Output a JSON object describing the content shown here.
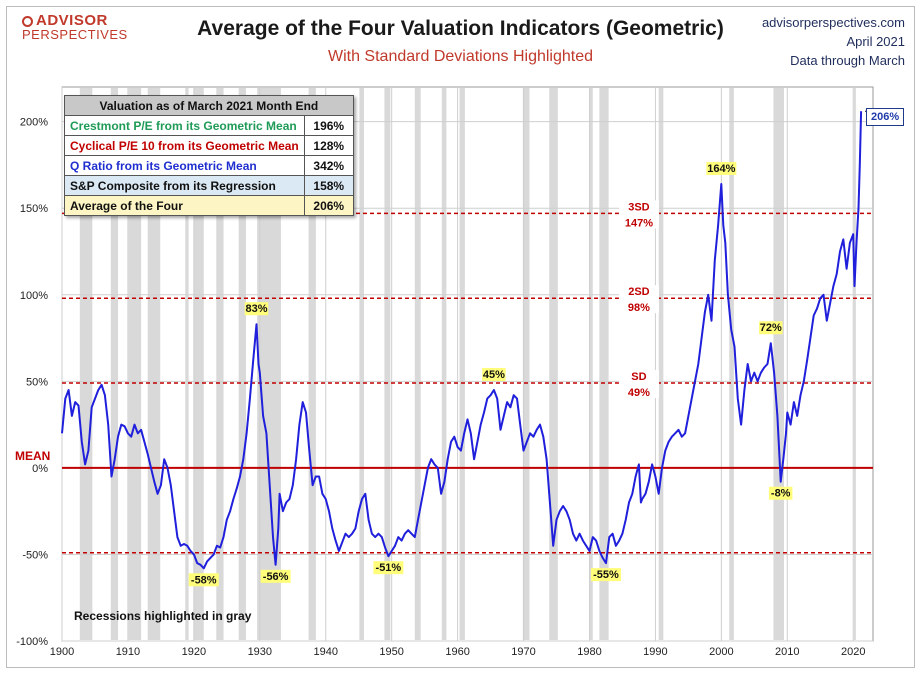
{
  "header": {
    "logo_line1": "ADVISOR",
    "logo_line2": "PERSPECTIVES",
    "title": "Average of the Four Valuation Indicators (Geometric)",
    "subtitle": "With Standard Deviations Highlighted",
    "site": "advisorperspectives.com",
    "date": "April 2021",
    "data_note": "Data through March"
  },
  "table": {
    "header": "Valuation as of March 2021 Month End",
    "rows": [
      {
        "label": "Crestmont P/E from its Geometric Mean",
        "value": "196%",
        "color": "#1f9b57",
        "bg": "#ffffff"
      },
      {
        "label": "Cyclical P/E 10 from its Geometric Mean",
        "value": "128%",
        "color": "#c00000",
        "bg": "#ffffff"
      },
      {
        "label": "Q Ratio from its Geometric Mean",
        "value": "342%",
        "color": "#1f2fcf",
        "bg": "#ffffff"
      },
      {
        "label": "S&P Composite from its Regression",
        "value": "158%",
        "color": "#111111",
        "bg": "#dbe9f5"
      },
      {
        "label": "Average of the Four",
        "value": "206%",
        "color": "#111111",
        "bg": "#fdf6c4"
      }
    ]
  },
  "recession_note": "Recessions highlighted in gray",
  "latest_badge": "206%",
  "mean_label": "MEAN",
  "chart_data": {
    "type": "line",
    "xlim": [
      1900,
      2023
    ],
    "ylim": [
      -100,
      220
    ],
    "x_ticks": [
      "1900",
      "1910",
      "1920",
      "1930",
      "1940",
      "1950",
      "1960",
      "1970",
      "1980",
      "1990",
      "2000",
      "2010",
      "2020"
    ],
    "y_ticks": [
      {
        "v": 200,
        "label": "200%"
      },
      {
        "v": 150,
        "label": "150%"
      },
      {
        "v": 100,
        "label": "100%"
      },
      {
        "v": 50,
        "label": "50%"
      },
      {
        "v": 0,
        "label": "0%"
      },
      {
        "v": -50,
        "label": "-50%"
      },
      {
        "v": -100,
        "label": "-100%"
      }
    ],
    "grid": true,
    "line_color": "#1f1fdc",
    "mean_color": "#c00000",
    "sd_lines": [
      {
        "v": 147,
        "label": "3SD",
        "value": "147%"
      },
      {
        "v": 98,
        "label": "2SD",
        "value": "98%"
      },
      {
        "v": 49,
        "label": "SD",
        "value": "49%"
      },
      {
        "v": -49,
        "label": "",
        "value": ""
      }
    ],
    "recessions": [
      [
        1902.7,
        1904.6
      ],
      [
        1907.4,
        1908.5
      ],
      [
        1910.1,
        1912.0
      ],
      [
        1913.0,
        1914.9
      ],
      [
        1918.7,
        1919.2
      ],
      [
        1920.0,
        1921.5
      ],
      [
        1923.4,
        1924.5
      ],
      [
        1926.8,
        1927.9
      ],
      [
        1929.6,
        1933.2
      ],
      [
        1937.4,
        1938.5
      ],
      [
        1945.1,
        1945.8
      ],
      [
        1948.9,
        1949.8
      ],
      [
        1953.5,
        1954.4
      ],
      [
        1957.6,
        1958.3
      ],
      [
        1960.3,
        1961.1
      ],
      [
        1969.9,
        1970.9
      ],
      [
        1973.9,
        1975.2
      ],
      [
        1980.0,
        1980.5
      ],
      [
        1981.5,
        1982.9
      ],
      [
        1990.5,
        1991.2
      ],
      [
        2001.2,
        2001.9
      ],
      [
        2007.9,
        2009.5
      ],
      [
        2020.1,
        2020.4
      ]
    ],
    "series": [
      {
        "values": [
          [
            1900.0,
            20
          ],
          [
            1900.5,
            40
          ],
          [
            1901.0,
            45
          ],
          [
            1901.5,
            30
          ],
          [
            1902.0,
            38
          ],
          [
            1902.5,
            36
          ],
          [
            1903.0,
            15
          ],
          [
            1903.5,
            2
          ],
          [
            1904.0,
            10
          ],
          [
            1904.5,
            35
          ],
          [
            1905.0,
            40
          ],
          [
            1905.5,
            45
          ],
          [
            1906.0,
            48
          ],
          [
            1906.5,
            42
          ],
          [
            1907.0,
            25
          ],
          [
            1907.5,
            -5
          ],
          [
            1908.0,
            5
          ],
          [
            1908.5,
            18
          ],
          [
            1909.0,
            25
          ],
          [
            1909.5,
            24
          ],
          [
            1910.0,
            20
          ],
          [
            1910.5,
            18
          ],
          [
            1911.0,
            25
          ],
          [
            1911.5,
            20
          ],
          [
            1912.0,
            22
          ],
          [
            1912.5,
            15
          ],
          [
            1913.0,
            8
          ],
          [
            1913.5,
            0
          ],
          [
            1914.0,
            -8
          ],
          [
            1914.5,
            -15
          ],
          [
            1915.0,
            -10
          ],
          [
            1915.5,
            5
          ],
          [
            1916.0,
            0
          ],
          [
            1916.5,
            -10
          ],
          [
            1917.0,
            -25
          ],
          [
            1917.5,
            -40
          ],
          [
            1918.0,
            -45
          ],
          [
            1918.5,
            -44
          ],
          [
            1919.0,
            -45
          ],
          [
            1919.5,
            -48
          ],
          [
            1920.0,
            -50
          ],
          [
            1920.5,
            -55
          ],
          [
            1921.0,
            -56
          ],
          [
            1921.5,
            -58
          ],
          [
            1922.0,
            -54
          ],
          [
            1922.5,
            -52
          ],
          [
            1923.0,
            -50
          ],
          [
            1923.5,
            -45
          ],
          [
            1924.0,
            -46
          ],
          [
            1924.5,
            -40
          ],
          [
            1925.0,
            -30
          ],
          [
            1925.5,
            -25
          ],
          [
            1926.0,
            -18
          ],
          [
            1926.5,
            -12
          ],
          [
            1927.0,
            -5
          ],
          [
            1927.5,
            5
          ],
          [
            1928.0,
            20
          ],
          [
            1928.5,
            40
          ],
          [
            1929.0,
            62
          ],
          [
            1929.5,
            83
          ],
          [
            1929.8,
            60
          ],
          [
            1930.0,
            55
          ],
          [
            1930.5,
            30
          ],
          [
            1931.0,
            20
          ],
          [
            1931.5,
            -10
          ],
          [
            1932.0,
            -40
          ],
          [
            1932.4,
            -56
          ],
          [
            1932.8,
            -35
          ],
          [
            1933.0,
            -15
          ],
          [
            1933.5,
            -25
          ],
          [
            1934.0,
            -20
          ],
          [
            1934.5,
            -18
          ],
          [
            1935.0,
            -10
          ],
          [
            1935.5,
            5
          ],
          [
            1936.0,
            25
          ],
          [
            1936.5,
            38
          ],
          [
            1937.0,
            32
          ],
          [
            1937.5,
            10
          ],
          [
            1938.0,
            -10
          ],
          [
            1938.5,
            -5
          ],
          [
            1939.0,
            -5
          ],
          [
            1939.5,
            -15
          ],
          [
            1940.0,
            -18
          ],
          [
            1940.5,
            -25
          ],
          [
            1941.0,
            -35
          ],
          [
            1941.5,
            -42
          ],
          [
            1942.0,
            -48
          ],
          [
            1942.5,
            -43
          ],
          [
            1943.0,
            -38
          ],
          [
            1943.5,
            -40
          ],
          [
            1944.0,
            -38
          ],
          [
            1944.5,
            -35
          ],
          [
            1945.0,
            -25
          ],
          [
            1945.5,
            -18
          ],
          [
            1946.0,
            -15
          ],
          [
            1946.5,
            -30
          ],
          [
            1947.0,
            -38
          ],
          [
            1947.5,
            -40
          ],
          [
            1948.0,
            -38
          ],
          [
            1948.5,
            -40
          ],
          [
            1949.0,
            -46
          ],
          [
            1949.5,
            -51
          ],
          [
            1950.0,
            -48
          ],
          [
            1950.5,
            -45
          ],
          [
            1951.0,
            -40
          ],
          [
            1951.5,
            -42
          ],
          [
            1952.0,
            -38
          ],
          [
            1952.5,
            -36
          ],
          [
            1953.0,
            -38
          ],
          [
            1953.5,
            -40
          ],
          [
            1954.0,
            -30
          ],
          [
            1954.5,
            -20
          ],
          [
            1955.0,
            -10
          ],
          [
            1955.5,
            0
          ],
          [
            1956.0,
            5
          ],
          [
            1956.5,
            2
          ],
          [
            1957.0,
            0
          ],
          [
            1957.5,
            -15
          ],
          [
            1958.0,
            -8
          ],
          [
            1958.5,
            5
          ],
          [
            1959.0,
            15
          ],
          [
            1959.5,
            18
          ],
          [
            1960.0,
            12
          ],
          [
            1960.5,
            10
          ],
          [
            1961.0,
            20
          ],
          [
            1961.5,
            28
          ],
          [
            1962.0,
            20
          ],
          [
            1962.5,
            5
          ],
          [
            1963.0,
            15
          ],
          [
            1963.5,
            25
          ],
          [
            1964.0,
            32
          ],
          [
            1964.5,
            40
          ],
          [
            1965.0,
            42
          ],
          [
            1965.5,
            45
          ],
          [
            1966.0,
            40
          ],
          [
            1966.5,
            22
          ],
          [
            1967.0,
            30
          ],
          [
            1967.5,
            38
          ],
          [
            1968.0,
            35
          ],
          [
            1968.5,
            42
          ],
          [
            1969.0,
            40
          ],
          [
            1969.5,
            25
          ],
          [
            1970.0,
            10
          ],
          [
            1970.5,
            15
          ],
          [
            1971.0,
            20
          ],
          [
            1971.5,
            18
          ],
          [
            1972.0,
            22
          ],
          [
            1972.5,
            25
          ],
          [
            1973.0,
            18
          ],
          [
            1973.5,
            5
          ],
          [
            1974.0,
            -20
          ],
          [
            1974.5,
            -45
          ],
          [
            1975.0,
            -30
          ],
          [
            1975.5,
            -25
          ],
          [
            1976.0,
            -22
          ],
          [
            1976.5,
            -25
          ],
          [
            1977.0,
            -30
          ],
          [
            1977.5,
            -38
          ],
          [
            1978.0,
            -42
          ],
          [
            1978.5,
            -38
          ],
          [
            1979.0,
            -42
          ],
          [
            1979.5,
            -45
          ],
          [
            1980.0,
            -48
          ],
          [
            1980.5,
            -40
          ],
          [
            1981.0,
            -42
          ],
          [
            1981.5,
            -48
          ],
          [
            1982.0,
            -52
          ],
          [
            1982.5,
            -55
          ],
          [
            1983.0,
            -40
          ],
          [
            1983.5,
            -38
          ],
          [
            1984.0,
            -45
          ],
          [
            1984.5,
            -42
          ],
          [
            1985.0,
            -38
          ],
          [
            1985.5,
            -30
          ],
          [
            1986.0,
            -20
          ],
          [
            1986.5,
            -15
          ],
          [
            1987.0,
            -5
          ],
          [
            1987.5,
            2
          ],
          [
            1987.8,
            -20
          ],
          [
            1988.0,
            -18
          ],
          [
            1988.5,
            -15
          ],
          [
            1989.0,
            -8
          ],
          [
            1989.5,
            2
          ],
          [
            1990.0,
            -5
          ],
          [
            1990.5,
            -15
          ],
          [
            1991.0,
            0
          ],
          [
            1991.5,
            10
          ],
          [
            1992.0,
            15
          ],
          [
            1992.5,
            18
          ],
          [
            1993.0,
            20
          ],
          [
            1993.5,
            22
          ],
          [
            1994.0,
            18
          ],
          [
            1994.5,
            20
          ],
          [
            1995.0,
            30
          ],
          [
            1995.5,
            40
          ],
          [
            1996.0,
            50
          ],
          [
            1996.5,
            60
          ],
          [
            1997.0,
            75
          ],
          [
            1997.5,
            90
          ],
          [
            1998.0,
            100
          ],
          [
            1998.5,
            85
          ],
          [
            1999.0,
            120
          ],
          [
            1999.5,
            140
          ],
          [
            2000.0,
            164
          ],
          [
            2000.3,
            140
          ],
          [
            2000.6,
            130
          ],
          [
            2001.0,
            100
          ],
          [
            2001.5,
            80
          ],
          [
            2002.0,
            70
          ],
          [
            2002.5,
            40
          ],
          [
            2003.0,
            25
          ],
          [
            2003.5,
            45
          ],
          [
            2004.0,
            60
          ],
          [
            2004.5,
            50
          ],
          [
            2005.0,
            55
          ],
          [
            2005.5,
            50
          ],
          [
            2006.0,
            55
          ],
          [
            2006.5,
            58
          ],
          [
            2007.0,
            60
          ],
          [
            2007.5,
            72
          ],
          [
            2008.0,
            55
          ],
          [
            2008.5,
            30
          ],
          [
            2009.0,
            -8
          ],
          [
            2009.4,
            5
          ],
          [
            2009.8,
            20
          ],
          [
            2010.0,
            32
          ],
          [
            2010.5,
            25
          ],
          [
            2011.0,
            38
          ],
          [
            2011.5,
            30
          ],
          [
            2012.0,
            42
          ],
          [
            2012.5,
            50
          ],
          [
            2013.0,
            62
          ],
          [
            2013.5,
            75
          ],
          [
            2014.0,
            88
          ],
          [
            2014.5,
            92
          ],
          [
            2015.0,
            98
          ],
          [
            2015.5,
            100
          ],
          [
            2016.0,
            85
          ],
          [
            2016.5,
            95
          ],
          [
            2017.0,
            105
          ],
          [
            2017.5,
            112
          ],
          [
            2018.0,
            125
          ],
          [
            2018.5,
            132
          ],
          [
            2019.0,
            115
          ],
          [
            2019.5,
            130
          ],
          [
            2020.0,
            135
          ],
          [
            2020.2,
            105
          ],
          [
            2020.5,
            130
          ],
          [
            2020.8,
            150
          ],
          [
            2021.0,
            175
          ],
          [
            2021.2,
            206
          ]
        ]
      }
    ],
    "callouts": [
      {
        "x": 2000.0,
        "y": 164,
        "label": "164%",
        "pos": "above"
      },
      {
        "x": 1929.5,
        "y": 83,
        "label": "83%",
        "pos": "above"
      },
      {
        "x": 2007.5,
        "y": 72,
        "label": "72%",
        "pos": "above"
      },
      {
        "x": 1965.5,
        "y": 45,
        "label": "45%",
        "pos": "above"
      },
      {
        "x": 1921.5,
        "y": -58,
        "label": "-58%",
        "pos": "below"
      },
      {
        "x": 1932.4,
        "y": -56,
        "label": "-56%",
        "pos": "below"
      },
      {
        "x": 1949.5,
        "y": -51,
        "label": "-51%",
        "pos": "below"
      },
      {
        "x": 1982.5,
        "y": -55,
        "label": "-55%",
        "pos": "below"
      },
      {
        "x": 2009.0,
        "y": -8,
        "label": "-8%",
        "pos": "below"
      }
    ]
  }
}
